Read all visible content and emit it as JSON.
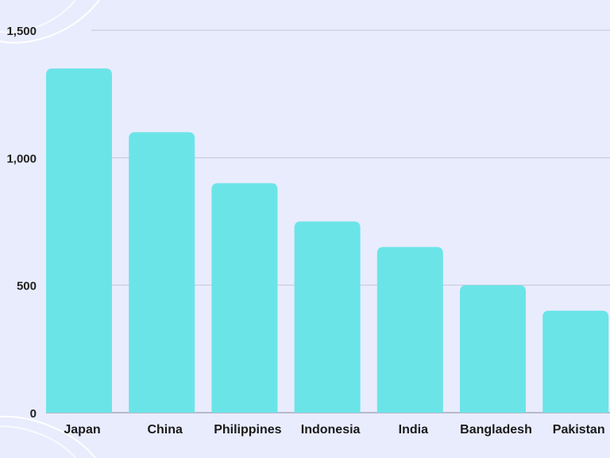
{
  "colors": {
    "background": "#e9ecfd",
    "bar": "#6be4e8",
    "grid": "#c3c6d6",
    "text": "#1a1a1a"
  },
  "chart_data": {
    "type": "bar",
    "title": "",
    "xlabel": "",
    "ylabel": "",
    "categories": [
      "Japan",
      "China",
      "Philippines",
      "Indonesia",
      "India",
      "Bangladesh",
      "Pakistan"
    ],
    "values": [
      1350,
      1100,
      900,
      750,
      650,
      500,
      400
    ],
    "ylim": [
      0,
      1500
    ],
    "yticks": [
      0,
      500,
      1000,
      1500
    ],
    "ytick_labels": [
      "0",
      "500",
      "1,000",
      "1,500"
    ],
    "grid": true,
    "legend": "none"
  }
}
